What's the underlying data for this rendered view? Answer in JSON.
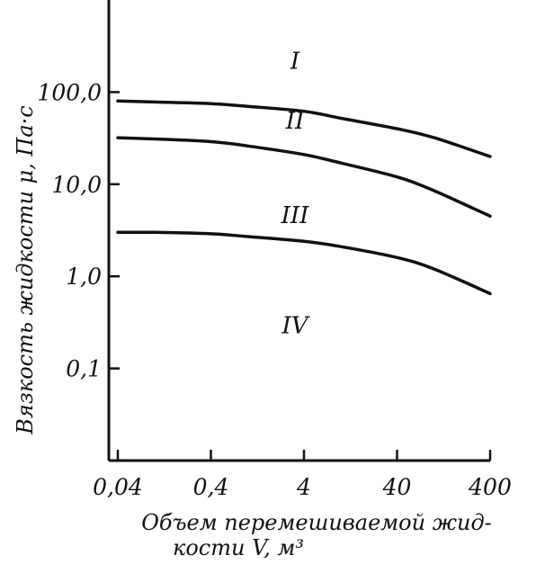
{
  "chart_data": {
    "type": "line",
    "x_scale": "log",
    "y_scale": "log",
    "xlabel_line1": "Объем перемешиваемой жид-",
    "xlabel_line2": "кости V, м³",
    "ylabel": "Вязкость жидкости μ, Па·с",
    "x_ticks": [
      "0,04",
      "0,4",
      "4",
      "40",
      "400"
    ],
    "y_ticks": [
      "0,1",
      "1,0",
      "10,0",
      "100,0"
    ],
    "x_tick_values": [
      0.04,
      0.4,
      4,
      40,
      400
    ],
    "y_tick_values": [
      0.1,
      1,
      10,
      100
    ],
    "xlim": [
      0.04,
      400
    ],
    "ylim": [
      0.01,
      1000
    ],
    "grid": false,
    "region_labels": [
      {
        "text": "I",
        "x": 4,
        "y": 180
      },
      {
        "text": "II",
        "x": 4,
        "y": 40
      },
      {
        "text": "III",
        "x": 4,
        "y": 3.8
      },
      {
        "text": "IV",
        "x": 4,
        "y": 0.24
      }
    ],
    "series": [
      {
        "x": [
          0.04,
          0.1,
          0.4,
          1,
          4,
          10,
          40,
          100,
          400
        ],
        "y": [
          80,
          78,
          75,
          70,
          62,
          52,
          40,
          32,
          20
        ]
      },
      {
        "x": [
          0.04,
          0.1,
          0.4,
          1,
          4,
          10,
          40,
          100,
          400
        ],
        "y": [
          32,
          31,
          29,
          26,
          21,
          17,
          12,
          8.5,
          4.5
        ]
      },
      {
        "x": [
          0.04,
          0.1,
          0.4,
          1,
          4,
          10,
          40,
          100,
          400
        ],
        "y": [
          3.0,
          3.0,
          2.9,
          2.7,
          2.4,
          2.1,
          1.6,
          1.2,
          0.65
        ]
      }
    ]
  }
}
